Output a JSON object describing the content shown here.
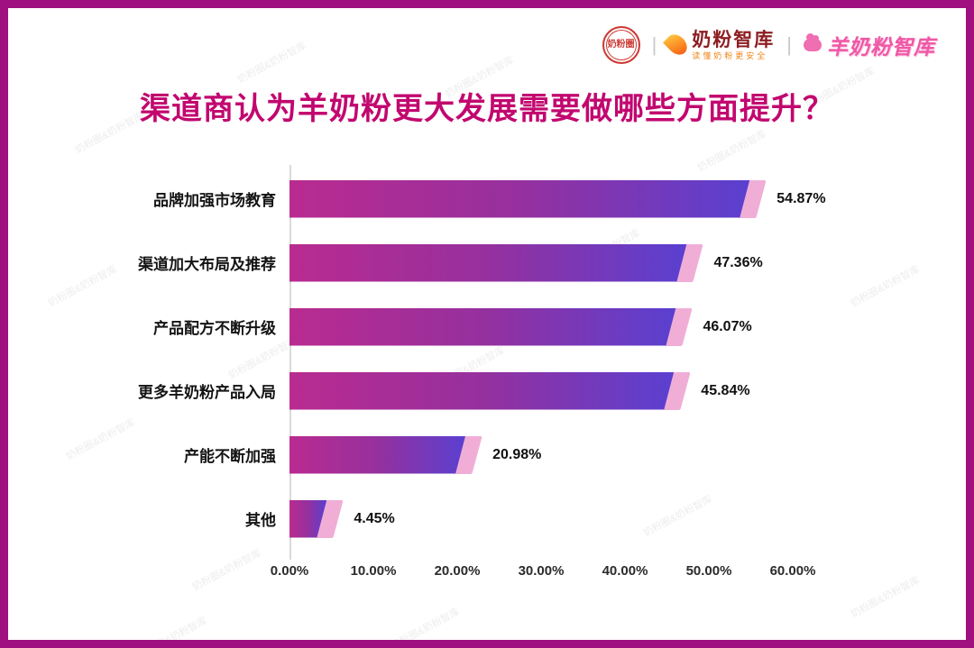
{
  "header": {
    "logo_seal_text": "奶粉圈",
    "divider": "|",
    "logo_brand": {
      "name": "奶粉智库",
      "tagline": "读懂奶粉更安全"
    },
    "logo_goat": "羊奶粉智库"
  },
  "title": "渠道商认为羊奶粉更大发展需要做哪些方面提升？",
  "watermark": "奶粉圈&奶粉智库",
  "colors": {
    "frame": "#a1107f",
    "title_color": "#c2076f",
    "bar_start": "#b92b90",
    "bar_end": "#5a40d0",
    "cap": "#f0aed7"
  },
  "chart_data": {
    "type": "bar",
    "orientation": "horizontal",
    "title": "渠道商认为羊奶粉更大发展需要做哪些方面提升？",
    "categories": [
      "品牌加强市场教育",
      "渠道加大布局及推荐",
      "产品配方不断升级",
      "更多羊奶粉产品入局",
      "产能不断加强",
      "其他"
    ],
    "values": [
      54.87,
      47.36,
      46.07,
      45.84,
      20.98,
      4.45
    ],
    "value_labels": [
      "54.87%",
      "47.36%",
      "46.07%",
      "45.84%",
      "20.98%",
      "4.45%"
    ],
    "x_ticks": [
      "0.00%",
      "10.00%",
      "20.00%",
      "30.00%",
      "40.00%",
      "50.00%",
      "60.00%"
    ],
    "xlim": [
      0,
      60
    ],
    "grid": false,
    "legend": "none"
  }
}
